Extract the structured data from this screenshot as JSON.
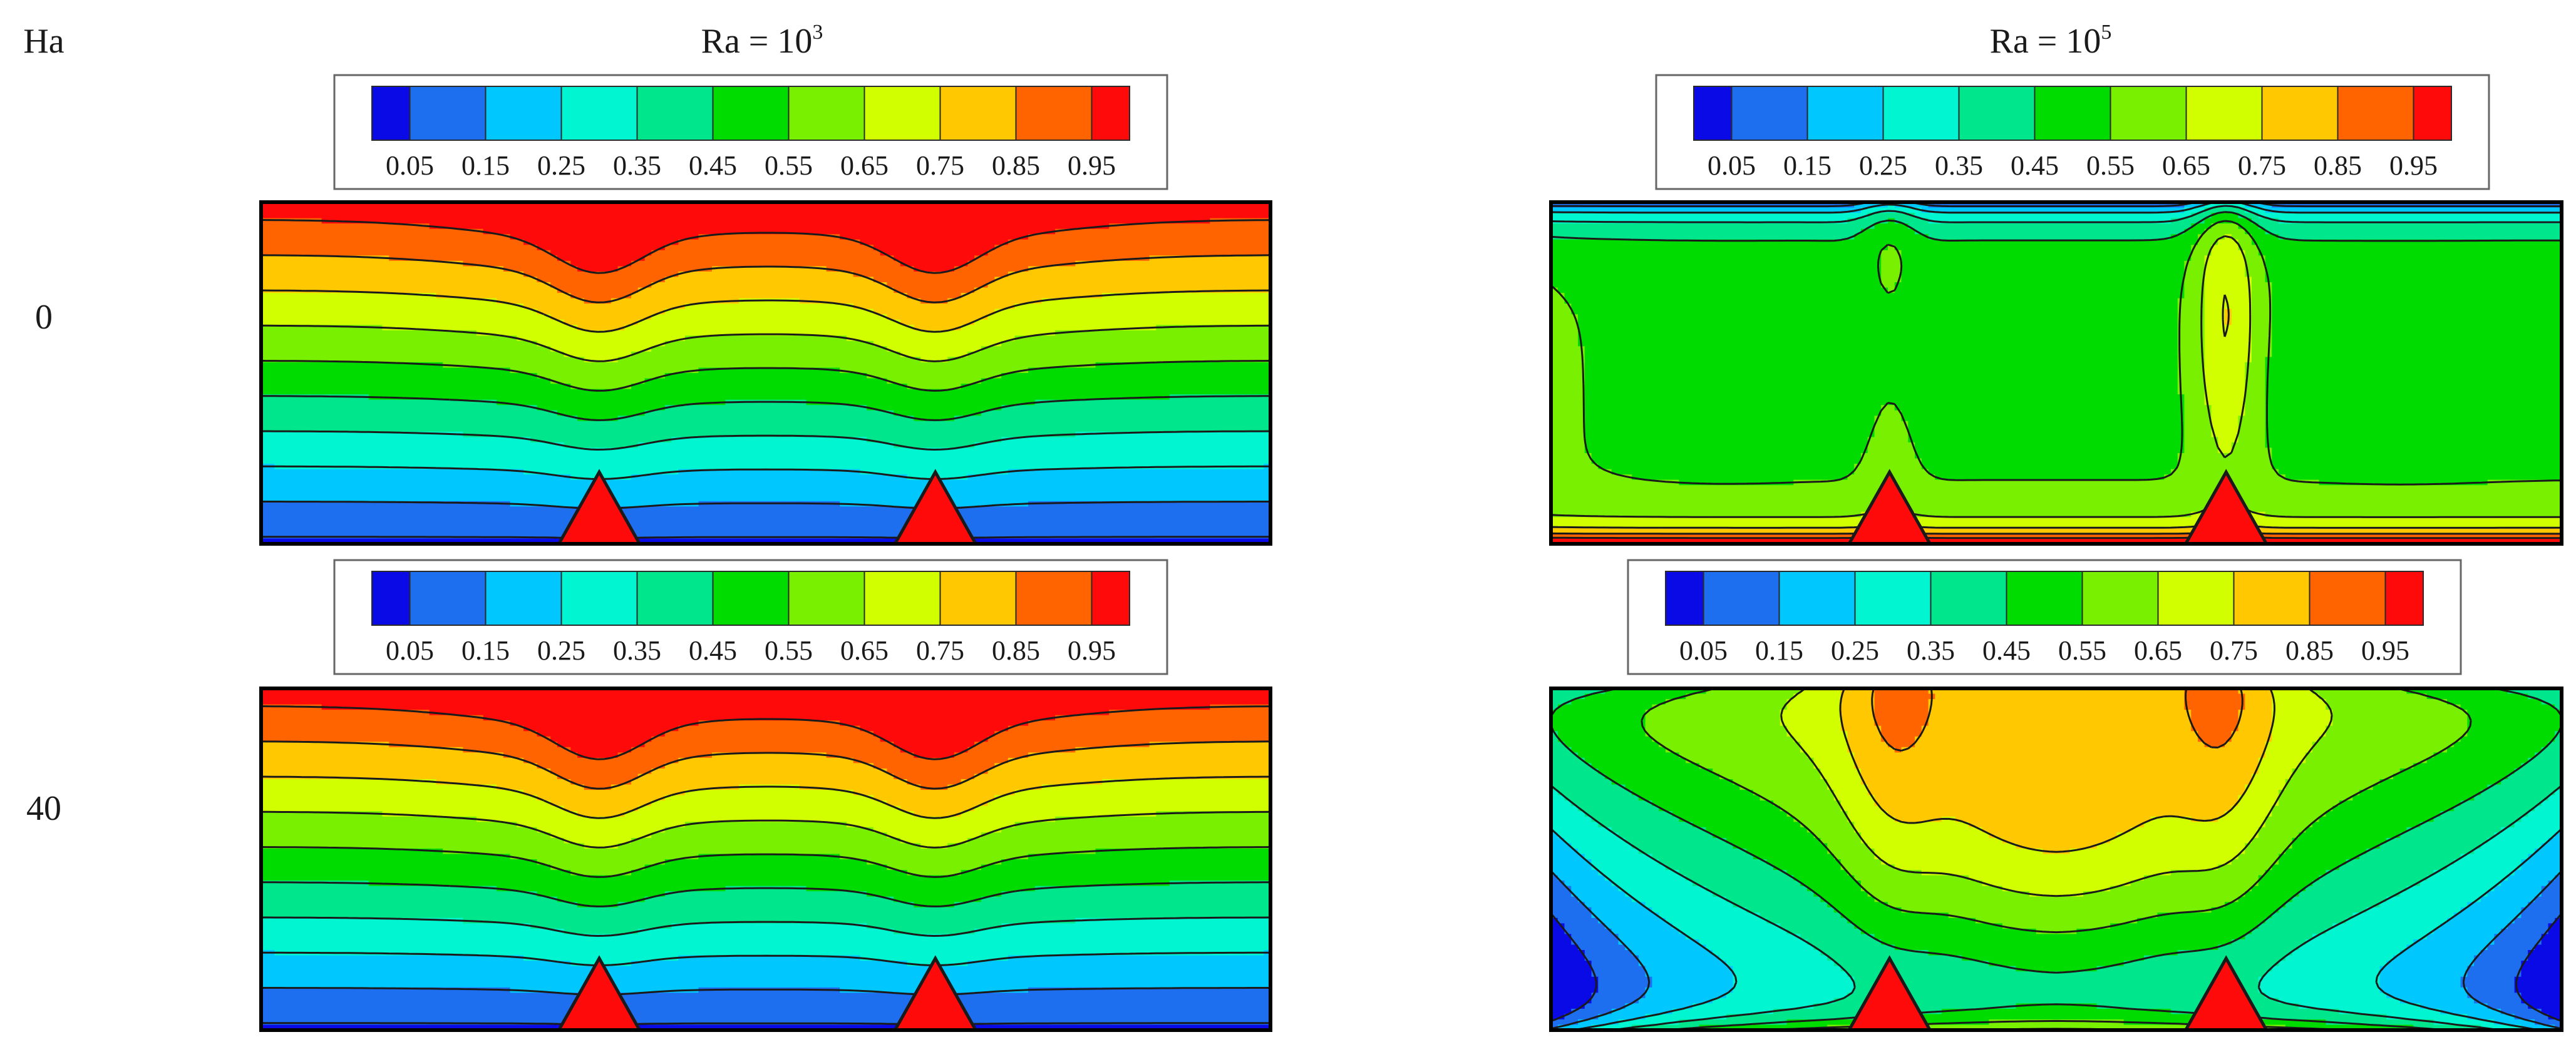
{
  "chart_data": {
    "type": "heatmap",
    "description_kind": "isotherm contour plots",
    "row_header": "Ha",
    "column_headers": [
      {
        "base": "Ra = 10",
        "exponent": "3"
      },
      {
        "base": "Ra = 10",
        "exponent": "5"
      }
    ],
    "rows": [
      {
        "ha": "0"
      },
      {
        "ha": "40"
      }
    ],
    "legend": {
      "levels": [
        "0.05",
        "0.15",
        "0.25",
        "0.35",
        "0.45",
        "0.55",
        "0.65",
        "0.75",
        "0.85",
        "0.95"
      ],
      "colors": [
        "#0a0ae6",
        "#1e6ff0",
        "#00c8ff",
        "#00f5d0",
        "#00e68c",
        "#00dc00",
        "#78f000",
        "#d2ff00",
        "#ffc800",
        "#ff6400",
        "#ff0a0a"
      ]
    },
    "contour_levels": [
      0.05,
      0.15,
      0.25,
      0.35,
      0.45,
      0.55,
      0.65,
      0.75,
      0.85,
      0.95
    ],
    "panels": [
      {
        "ha": "0",
        "ra": "1e3",
        "pattern": "conduction"
      },
      {
        "ha": "0",
        "ra": "1e5",
        "pattern": "four-cell convection"
      },
      {
        "ha": "40",
        "ra": "1e3",
        "pattern": "conduction"
      },
      {
        "ha": "40",
        "ra": "1e5",
        "pattern": "central plume"
      }
    ]
  }
}
